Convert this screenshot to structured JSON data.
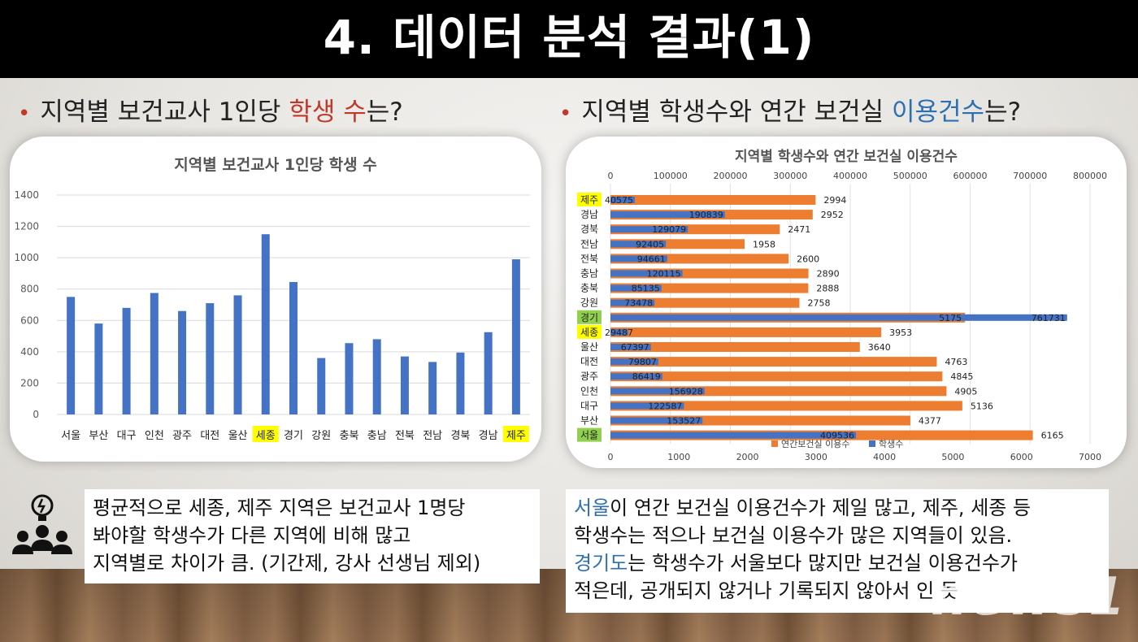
{
  "title": "4. 데이터 분석 결과(1)",
  "left_bullet": {
    "pre": "지역별 보건교사 1인당 ",
    "hl": "학생 수",
    "post": "는?"
  },
  "right_bullet": {
    "pre": "지역별 학생수와 연간 보건실 ",
    "hl": "이용건수",
    "post": "는?"
  },
  "colors": {
    "bar_blue": "#4472c4",
    "bar_orange": "#ed7d31",
    "highlight_yellow": "#ffff00",
    "highlight_green": "#92d050",
    "accent_red": "#c0392b",
    "accent_blue": "#2e6fb3"
  },
  "chart_data": [
    {
      "type": "bar",
      "title": "지역별 보건교사 1인당 학생 수",
      "categories": [
        "서울",
        "부산",
        "대구",
        "인천",
        "광주",
        "대전",
        "울산",
        "세종",
        "경기",
        "강원",
        "충북",
        "충남",
        "전북",
        "전남",
        "경북",
        "경남",
        "제주"
      ],
      "values": [
        750,
        580,
        680,
        775,
        660,
        710,
        760,
        1150,
        845,
        360,
        455,
        480,
        370,
        335,
        395,
        525,
        990
      ],
      "highlighted": [
        "세종",
        "제주"
      ],
      "ylim": [
        0,
        1400
      ],
      "yticks": [
        0,
        200,
        400,
        600,
        800,
        1000,
        1200,
        1400
      ],
      "grid": true
    },
    {
      "type": "bar",
      "orientation": "horizontal",
      "title": "지역별 학생수와 연간 보건실 이용건수",
      "categories": [
        "제주",
        "경남",
        "경북",
        "전남",
        "전북",
        "충남",
        "충북",
        "강원",
        "경기",
        "세종",
        "울산",
        "대전",
        "광주",
        "인천",
        "대구",
        "부산",
        "서울"
      ],
      "series": [
        {
          "name": "연간보건실 이용수",
          "axis": "bottom",
          "values": [
            2994,
            2952,
            2471,
            1958,
            2600,
            2890,
            2888,
            2758,
            5175,
            3953,
            3640,
            4763,
            4845,
            4905,
            5136,
            4377,
            6165
          ]
        },
        {
          "name": "학생수",
          "axis": "top",
          "values": [
            40575,
            190839,
            129079,
            92405,
            94661,
            120115,
            85135,
            73478,
            761731,
            29487,
            67397,
            79807,
            86419,
            156928,
            122587,
            153527,
            409536
          ]
        }
      ],
      "top_axis": {
        "range": [
          0,
          800000
        ],
        "ticks": [
          "0",
          "100000",
          "200000",
          "300000",
          "400000",
          "500000",
          "600000",
          "700000",
          "800000"
        ]
      },
      "bottom_axis": {
        "range": [
          0,
          7000
        ],
        "ticks": [
          "0",
          "1000",
          "2000",
          "3000",
          "4000",
          "5000",
          "6000",
          "7000"
        ]
      },
      "highlighted_yellow": [
        "제주",
        "세종"
      ],
      "highlighted_green": [
        "경기",
        "서울"
      ],
      "legend": "bottom"
    }
  ],
  "left_text": [
    "평균적으로 세종, 제주 지역은 보건교사 1명당",
    "봐야할 학생수가 다른 지역에 비해 많고",
    "지역별로 차이가 큼. (기간제, 강사 선생님 제외)"
  ],
  "right_text": {
    "line1_hl": "서울",
    "line1_rest": "이 연간 보건실 이용건수가 제일 많고, 제주, 세종 등",
    "line2": "학생수는 적으나 보건실 이용수가 많은 지역들이 있음.",
    "line3_hl": "경기도",
    "line3_rest": "는 학생수가 서울보다 많지만 보건실 이용건수가",
    "line4": "적은데, 공개되지 않거나 기록되지 않아서 인 듯"
  },
  "watermark": "news1",
  "icon_name": "team-idea-icon"
}
